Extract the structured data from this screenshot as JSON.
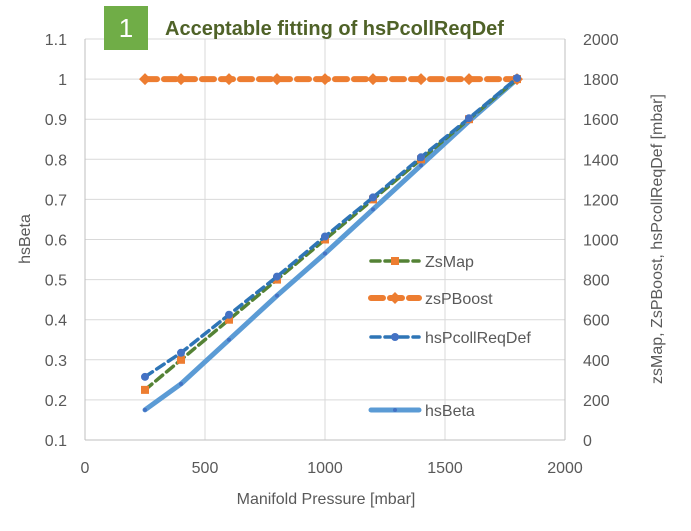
{
  "badge": {
    "label": "1",
    "color": "#70ad47"
  },
  "title": "Acceptable fitting of hsPcollReqDef",
  "chart_data": {
    "type": "line",
    "xlabel": "Manifold Pressure [mbar]",
    "ylabel": "hsBeta",
    "y2label": "zsMap, ZsPBoost, hsPcollReqDef [mbar]",
    "xlim": [
      0,
      2000
    ],
    "ylim": [
      0.1,
      1.1
    ],
    "y2lim": [
      0,
      2000
    ],
    "x_ticks": [
      "0",
      "500",
      "1000",
      "1500",
      "2000"
    ],
    "y_ticks": [
      "0.1",
      "0.2",
      "0.3",
      "0.4",
      "0.5",
      "0.6",
      "0.7",
      "0.8",
      "0.9",
      "1",
      "1.1"
    ],
    "y2_ticks": [
      "0",
      "200",
      "400",
      "600",
      "800",
      "1000",
      "1200",
      "1400",
      "1600",
      "1800",
      "2000"
    ],
    "grid": true,
    "legend_position": "right",
    "series": [
      {
        "name": "ZsMap",
        "axis": "right",
        "color": "#548235",
        "style": "dashed",
        "marker": "square",
        "marker_color": "#ed7d31",
        "x": [
          250,
          400,
          600,
          800,
          1000,
          1200,
          1400,
          1600,
          1800
        ],
        "y": [
          250,
          400,
          600,
          800,
          1000,
          1200,
          1400,
          1600,
          1800
        ]
      },
      {
        "name": "zsPBoost",
        "axis": "right",
        "color": "#ed7d31",
        "style": "dashed-thick",
        "marker": "diamond",
        "marker_color": "#ed7d31",
        "x": [
          250,
          400,
          600,
          800,
          1000,
          1200,
          1400,
          1600,
          1800
        ],
        "y": [
          1800,
          1800,
          1800,
          1800,
          1800,
          1800,
          1800,
          1800,
          1800
        ]
      },
      {
        "name": "hsPcollReqDef",
        "axis": "right",
        "color": "#2e75b6",
        "style": "dashed",
        "marker": "circle",
        "marker_color": "#4472c4",
        "x": [
          250,
          400,
          600,
          800,
          1000,
          1200,
          1400,
          1600,
          1800
        ],
        "y": [
          315,
          435,
          625,
          815,
          1015,
          1210,
          1410,
          1605,
          1805
        ]
      },
      {
        "name": "hsBeta",
        "axis": "left",
        "color": "#5b9bd5",
        "style": "solid-thick",
        "marker": "dot",
        "marker_color": "#4472c4",
        "x": [
          250,
          400,
          600,
          800,
          1000,
          1200,
          1400,
          1600,
          1800
        ],
        "y": [
          0.175,
          0.24,
          0.35,
          0.46,
          0.565,
          0.675,
          0.785,
          0.895,
          1.0
        ]
      }
    ]
  }
}
